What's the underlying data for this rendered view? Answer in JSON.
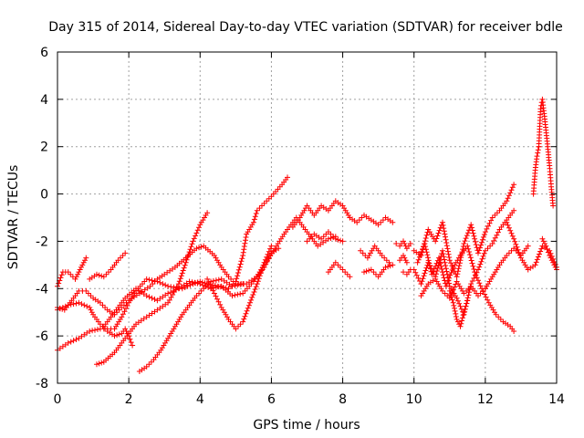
{
  "chart_data": {
    "type": "scatter",
    "title": "Day 315 of 2014, Sidereal Day-to-day VTEC variation (SDTVAR) for receiver bdle",
    "xlabel": "GPS time / hours",
    "ylabel": "SDTVAR / TECUs",
    "xlim": [
      0,
      14
    ],
    "ylim": [
      -8,
      6
    ],
    "xticks": [
      0,
      2,
      4,
      6,
      8,
      10,
      12,
      14
    ],
    "yticks": [
      -8,
      -6,
      -4,
      -2,
      0,
      2,
      4,
      6
    ],
    "grid": true,
    "marker": "+",
    "color": "#ff0000",
    "series": [
      {
        "name": "s1",
        "x": [
          0.0,
          0.15,
          0.3,
          0.5,
          0.6,
          0.7,
          0.8
        ],
        "y": [
          -3.9,
          -3.3,
          -3.3,
          -3.6,
          -3.3,
          -3.0,
          -2.7
        ]
      },
      {
        "name": "s2",
        "x": [
          0.0,
          0.3,
          0.6,
          0.9,
          1.2,
          1.4,
          1.6,
          1.8,
          2.0,
          2.2,
          2.5,
          2.8,
          3.1,
          3.5,
          3.8,
          4.0,
          4.2,
          4.5,
          4.8,
          5.0,
          5.2,
          5.3,
          5.5,
          5.6,
          5.8,
          6.0,
          6.3,
          6.45
        ],
        "y": [
          -6.6,
          -6.3,
          -6.1,
          -5.8,
          -5.7,
          -5.7,
          -5.7,
          -5.2,
          -4.6,
          -4.1,
          -3.6,
          -3.7,
          -3.9,
          -4.0,
          -3.8,
          -3.7,
          -3.8,
          -3.9,
          -4.0,
          -3.7,
          -2.6,
          -1.7,
          -1.2,
          -0.7,
          -0.4,
          -0.1,
          0.4,
          0.7
        ]
      },
      {
        "name": "s3",
        "x": [
          0.0,
          0.2,
          0.4,
          0.6,
          0.8,
          1.0,
          1.2,
          1.4,
          1.6,
          1.8,
          2.0,
          2.3,
          2.6,
          2.8,
          3.0,
          3.3,
          3.6,
          3.9,
          4.1,
          4.4,
          4.6,
          4.8,
          5.0,
          5.3,
          5.6,
          5.8,
          6.0,
          6.2
        ],
        "y": [
          -4.8,
          -4.9,
          -4.5,
          -4.1,
          -4.1,
          -4.4,
          -4.6,
          -4.9,
          -5.1,
          -4.8,
          -4.5,
          -4.2,
          -3.9,
          -3.6,
          -3.4,
          -3.1,
          -2.7,
          -2.3,
          -2.2,
          -2.6,
          -3.1,
          -3.5,
          -3.8,
          -3.8,
          -3.5,
          -3.1,
          -2.5,
          -2.3
        ]
      },
      {
        "name": "s4",
        "x": [
          0.0,
          0.3,
          0.6,
          0.9,
          1.0,
          1.2,
          1.4,
          1.6,
          1.8,
          1.9,
          2.0,
          2.1
        ],
        "y": [
          -4.9,
          -4.7,
          -4.6,
          -4.8,
          -5.1,
          -5.5,
          -5.8,
          -6.0,
          -5.9,
          -5.7,
          -6.0,
          -6.4
        ]
      },
      {
        "name": "s5",
        "x": [
          0.9,
          1.1,
          1.3,
          1.5,
          1.7,
          1.9
        ],
        "y": [
          -3.6,
          -3.4,
          -3.5,
          -3.2,
          -2.8,
          -2.5
        ]
      },
      {
        "name": "s6",
        "x": [
          1.1,
          1.3,
          1.6,
          1.9,
          2.2,
          2.5,
          2.8,
          3.1,
          3.4,
          3.6,
          3.8,
          4.0,
          4.2
        ],
        "y": [
          -7.2,
          -7.1,
          -6.7,
          -6.1,
          -5.5,
          -5.2,
          -4.9,
          -4.6,
          -3.8,
          -2.9,
          -2.0,
          -1.3,
          -0.8
        ]
      },
      {
        "name": "s7",
        "x": [
          1.3,
          1.6,
          1.9,
          2.2,
          2.5,
          2.8,
          3.1,
          3.4,
          3.7,
          4.0,
          4.3,
          4.6,
          4.9,
          5.2,
          5.5,
          5.8,
          6.1,
          6.4,
          6.7,
          7.0,
          7.3,
          7.6,
          7.8
        ],
        "y": [
          -5.6,
          -5.0,
          -4.4,
          -4.0,
          -4.3,
          -4.5,
          -4.2,
          -4.0,
          -3.7,
          -3.8,
          -4.0,
          -3.9,
          -4.3,
          -4.2,
          -3.7,
          -3.0,
          -2.3,
          -1.6,
          -1.0,
          -1.6,
          -2.2,
          -1.9,
          -1.8
        ]
      },
      {
        "name": "s8",
        "x": [
          2.3,
          2.5,
          2.7,
          2.9,
          3.1,
          3.3,
          3.5,
          3.7,
          3.9,
          4.1,
          4.3,
          4.6,
          4.9,
          5.2
        ],
        "y": [
          -7.5,
          -7.3,
          -7.0,
          -6.6,
          -6.1,
          -5.6,
          -5.1,
          -4.7,
          -4.3,
          -4.0,
          -3.7,
          -3.6,
          -3.9,
          -3.8
        ]
      },
      {
        "name": "s9",
        "x": [
          4.2,
          4.4,
          4.6,
          4.8,
          5.0,
          5.2,
          5.4,
          5.6,
          5.8,
          6.0
        ],
        "y": [
          -3.6,
          -4.2,
          -4.8,
          -5.3,
          -5.7,
          -5.4,
          -4.6,
          -3.8,
          -2.9,
          -2.2
        ]
      },
      {
        "name": "s10",
        "x": [
          6.6,
          6.8,
          7.0,
          7.2,
          7.4,
          7.6,
          7.8,
          8.0,
          8.2
        ],
        "y": [
          -1.4,
          -1.0,
          -0.5,
          -0.9,
          -0.5,
          -0.7,
          -0.3,
          -0.5,
          -1.0
        ]
      },
      {
        "name": "s11",
        "x": [
          7.0,
          7.2,
          7.4,
          7.6,
          7.8,
          8.0
        ],
        "y": [
          -2.0,
          -1.7,
          -1.9,
          -1.6,
          -1.9,
          -2.0
        ]
      },
      {
        "name": "s12",
        "x": [
          7.6,
          7.8,
          8.0,
          8.2
        ],
        "y": [
          -3.3,
          -2.9,
          -3.2,
          -3.5
        ]
      },
      {
        "name": "s13",
        "x": [
          8.2,
          8.4,
          8.6,
          8.8,
          9.0,
          9.2,
          9.4
        ],
        "y": [
          -1.0,
          -1.2,
          -0.9,
          -1.1,
          -1.3,
          -1.0,
          -1.2
        ]
      },
      {
        "name": "s14",
        "x": [
          8.5,
          8.7,
          8.9,
          9.1,
          9.3
        ],
        "y": [
          -2.4,
          -2.7,
          -2.2,
          -2.6,
          -2.9
        ]
      },
      {
        "name": "s15",
        "x": [
          8.6,
          8.8,
          9.0,
          9.2,
          9.4
        ],
        "y": [
          -3.3,
          -3.2,
          -3.5,
          -3.1,
          -3.0
        ]
      },
      {
        "name": "s16",
        "x": [
          9.5,
          9.6,
          9.7,
          9.8,
          9.9
        ],
        "y": [
          -2.1,
          -2.2,
          -2.0,
          -2.3,
          -2.1
        ]
      },
      {
        "name": "s17",
        "x": [
          9.6,
          9.7,
          9.8
        ],
        "y": [
          -2.8,
          -2.6,
          -2.9
        ]
      },
      {
        "name": "s18",
        "x": [
          9.7,
          9.8,
          9.9
        ],
        "y": [
          -3.3,
          -3.4,
          -3.2
        ]
      },
      {
        "name": "s19",
        "x": [
          10.0,
          10.2,
          10.4,
          10.6,
          10.8,
          11.0,
          11.2,
          11.4,
          11.6,
          11.8,
          12.0,
          12.2,
          12.4,
          12.6,
          12.8
        ],
        "y": [
          -2.4,
          -2.6,
          -1.5,
          -2.0,
          -1.2,
          -2.8,
          -3.5,
          -2.1,
          -1.3,
          -2.5,
          -1.6,
          -1.0,
          -0.7,
          -0.3,
          0.4
        ]
      },
      {
        "name": "s20",
        "x": [
          10.0,
          10.2,
          10.4,
          10.6,
          10.8,
          11.0,
          11.2,
          11.4,
          11.6,
          11.8,
          12.0,
          12.2,
          12.4,
          12.6,
          12.8
        ],
        "y": [
          -3.2,
          -3.8,
          -2.9,
          -3.5,
          -2.4,
          -3.9,
          -4.4,
          -5.1,
          -3.8,
          -3.2,
          -2.4,
          -2.1,
          -1.5,
          -1.1,
          -0.7
        ]
      },
      {
        "name": "s21",
        "x": [
          10.1,
          10.3,
          10.5,
          10.7,
          10.9,
          11.1,
          11.3,
          11.5,
          11.7,
          11.9,
          12.1,
          12.3,
          12.5,
          12.7,
          12.8
        ],
        "y": [
          -2.9,
          -2.1,
          -3.4,
          -2.7,
          -3.9,
          -3.1,
          -2.6,
          -2.2,
          -3.3,
          -4.0,
          -4.6,
          -5.1,
          -5.4,
          -5.6,
          -5.8
        ]
      },
      {
        "name": "s22",
        "x": [
          10.2,
          10.4,
          10.6,
          10.8,
          11.0,
          11.2,
          11.4,
          11.6,
          11.8,
          12.0
        ],
        "y": [
          -4.3,
          -3.8,
          -3.6,
          -4.1,
          -4.4,
          -3.7,
          -4.2,
          -3.9,
          -4.3,
          -4.0
        ]
      },
      {
        "name": "s23",
        "x": [
          11.0,
          11.1,
          11.2,
          11.3,
          11.4,
          11.5
        ],
        "y": [
          -4.1,
          -4.6,
          -5.3,
          -5.6,
          -5.0,
          -4.5
        ]
      },
      {
        "name": "s24",
        "x": [
          12.0,
          12.2,
          12.4,
          12.6,
          12.8,
          13.0,
          13.2
        ],
        "y": [
          -4.0,
          -3.5,
          -3.0,
          -2.6,
          -2.3,
          -2.6,
          -2.2
        ]
      },
      {
        "name": "s25",
        "x": [
          12.6,
          12.8,
          13.0,
          13.2,
          13.4,
          13.6,
          13.8,
          14.0
        ],
        "y": [
          -1.2,
          -1.9,
          -2.7,
          -3.2,
          -3.0,
          -2.2,
          -2.4,
          -3.1
        ]
      },
      {
        "name": "s26",
        "x": [
          13.5,
          13.55,
          13.6,
          13.65,
          13.7,
          13.75,
          13.8,
          13.85,
          13.9
        ],
        "y": [
          2.0,
          3.6,
          4.0,
          3.4,
          2.7,
          2.0,
          1.2,
          0.3,
          -0.5
        ]
      },
      {
        "name": "s27",
        "x": [
          13.35,
          13.4,
          13.45,
          13.5
        ],
        "y": [
          0.0,
          1.0,
          1.6,
          2.0
        ]
      },
      {
        "name": "s28",
        "x": [
          13.6,
          13.7,
          13.8,
          13.9,
          14.0
        ],
        "y": [
          -1.9,
          -2.2,
          -2.6,
          -2.9,
          -3.2
        ]
      }
    ]
  }
}
